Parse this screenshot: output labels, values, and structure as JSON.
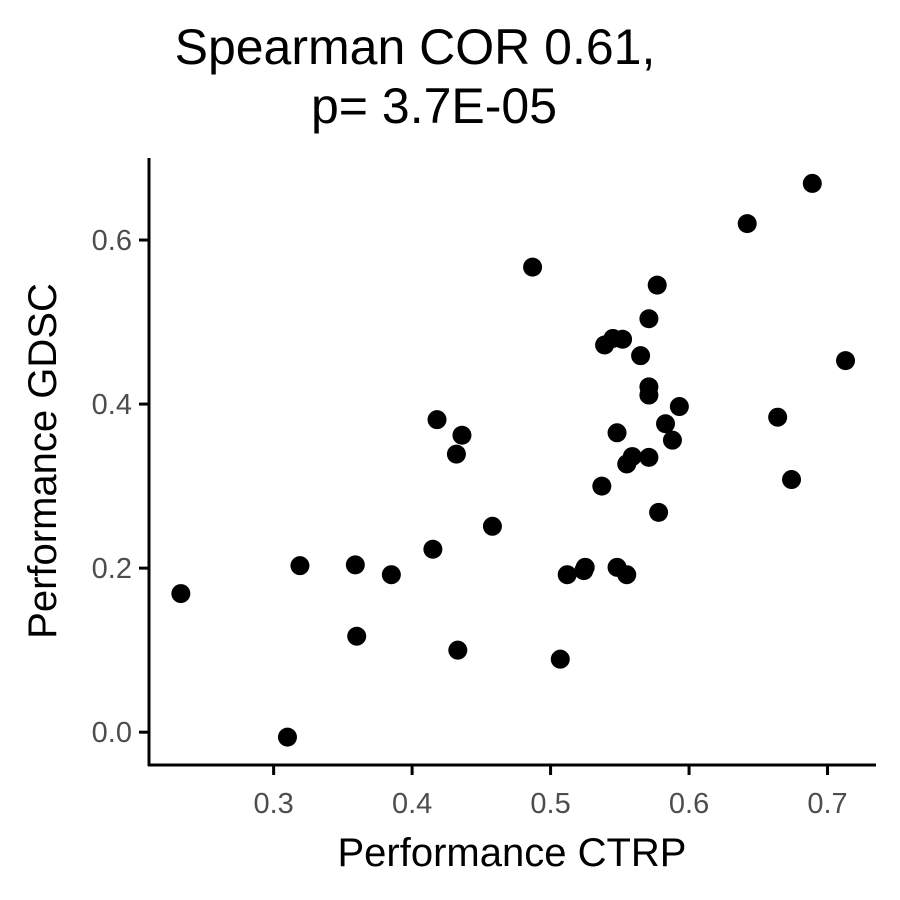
{
  "chart_data": {
    "type": "scatter",
    "title_lines": [
      "Spearman COR 0.61,",
      "p= 3.7E-05"
    ],
    "xlabel": "Performance CTRP",
    "ylabel": "Performance GDSC",
    "xlim": [
      0.21,
      0.735
    ],
    "ylim": [
      -0.04,
      0.7
    ],
    "x_ticks": [
      0.3,
      0.4,
      0.5,
      0.6,
      0.7
    ],
    "x_tick_labels": [
      "0.3",
      "0.4",
      "0.5",
      "0.6",
      "0.7"
    ],
    "y_ticks": [
      0.0,
      0.2,
      0.4,
      0.6
    ],
    "y_tick_labels": [
      "0.0",
      "0.2",
      "0.4",
      "0.6"
    ],
    "grid": false,
    "point_color": "#000000",
    "points": [
      {
        "x": 0.233,
        "y": 0.169
      },
      {
        "x": 0.31,
        "y": -0.006
      },
      {
        "x": 0.319,
        "y": 0.203
      },
      {
        "x": 0.359,
        "y": 0.204
      },
      {
        "x": 0.36,
        "y": 0.117
      },
      {
        "x": 0.385,
        "y": 0.192
      },
      {
        "x": 0.415,
        "y": 0.223
      },
      {
        "x": 0.418,
        "y": 0.381
      },
      {
        "x": 0.432,
        "y": 0.339
      },
      {
        "x": 0.433,
        "y": 0.1
      },
      {
        "x": 0.436,
        "y": 0.362
      },
      {
        "x": 0.458,
        "y": 0.251
      },
      {
        "x": 0.487,
        "y": 0.567
      },
      {
        "x": 0.507,
        "y": 0.089
      },
      {
        "x": 0.512,
        "y": 0.192
      },
      {
        "x": 0.524,
        "y": 0.197
      },
      {
        "x": 0.525,
        "y": 0.201
      },
      {
        "x": 0.537,
        "y": 0.3
      },
      {
        "x": 0.539,
        "y": 0.472
      },
      {
        "x": 0.545,
        "y": 0.48
      },
      {
        "x": 0.548,
        "y": 0.365
      },
      {
        "x": 0.548,
        "y": 0.201
      },
      {
        "x": 0.552,
        "y": 0.479
      },
      {
        "x": 0.555,
        "y": 0.327
      },
      {
        "x": 0.555,
        "y": 0.192
      },
      {
        "x": 0.559,
        "y": 0.336
      },
      {
        "x": 0.565,
        "y": 0.459
      },
      {
        "x": 0.571,
        "y": 0.504
      },
      {
        "x": 0.571,
        "y": 0.421
      },
      {
        "x": 0.571,
        "y": 0.411
      },
      {
        "x": 0.571,
        "y": 0.335
      },
      {
        "x": 0.577,
        "y": 0.545
      },
      {
        "x": 0.578,
        "y": 0.268
      },
      {
        "x": 0.583,
        "y": 0.376
      },
      {
        "x": 0.588,
        "y": 0.356
      },
      {
        "x": 0.593,
        "y": 0.397
      },
      {
        "x": 0.642,
        "y": 0.62
      },
      {
        "x": 0.664,
        "y": 0.384
      },
      {
        "x": 0.674,
        "y": 0.308
      },
      {
        "x": 0.689,
        "y": 0.669
      },
      {
        "x": 0.713,
        "y": 0.453
      }
    ]
  }
}
